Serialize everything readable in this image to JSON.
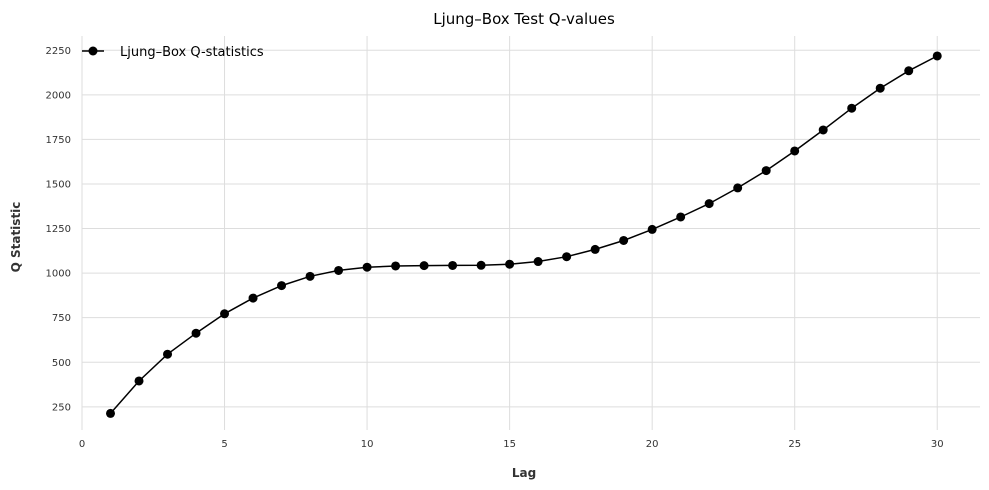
{
  "chart_data": {
    "type": "line",
    "title": "Ljung–Box Test Q-values",
    "xlabel": "Lag",
    "ylabel": "Q Statistic",
    "xlim": [
      0,
      31.5
    ],
    "ylim": [
      120,
      2330
    ],
    "xticks": [
      0,
      5,
      10,
      15,
      20,
      25,
      30
    ],
    "yticks": [
      250,
      500,
      750,
      1000,
      1250,
      1500,
      1750,
      2000,
      2250
    ],
    "grid": true,
    "legend_position": "top-left",
    "series": [
      {
        "name": "Ljung–Box Q-statistics",
        "color": "#000000",
        "marker": "circle",
        "x": [
          1,
          2,
          3,
          4,
          5,
          6,
          7,
          8,
          9,
          10,
          11,
          12,
          13,
          14,
          15,
          16,
          17,
          18,
          19,
          20,
          21,
          22,
          23,
          24,
          25,
          26,
          27,
          28,
          29,
          30
        ],
        "y": [
          213,
          395,
          545,
          663,
          772,
          860,
          930,
          982,
          1015,
          1033,
          1040,
          1042,
          1043,
          1044,
          1050,
          1065,
          1092,
          1133,
          1183,
          1245,
          1315,
          1390,
          1478,
          1575,
          1685,
          1803,
          1925,
          2037,
          2135,
          2218
        ]
      }
    ]
  }
}
